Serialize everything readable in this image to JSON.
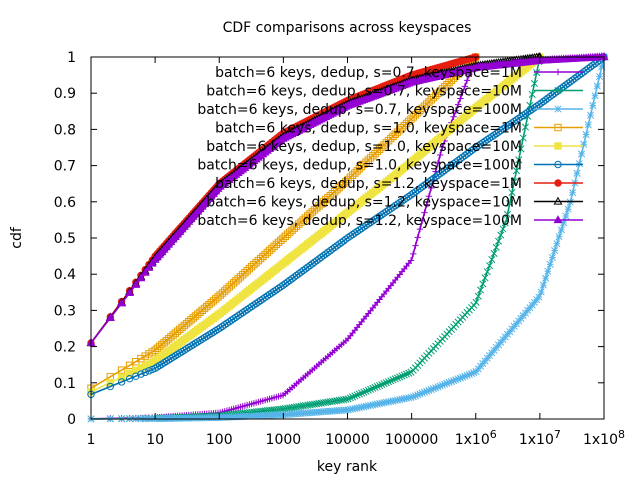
{
  "chart_data": {
    "type": "line",
    "title": "CDF comparisons across keyspaces",
    "xlabel": "key rank",
    "ylabel": "cdf",
    "x_scale": "log",
    "xlim": [
      1,
      100000000
    ],
    "ylim": [
      0,
      1
    ],
    "x_ticks": [
      {
        "value": 1,
        "label": "1"
      },
      {
        "value": 10,
        "label": "10"
      },
      {
        "value": 100,
        "label": "100"
      },
      {
        "value": 1000,
        "label": "1000"
      },
      {
        "value": 10000,
        "label": "10000"
      },
      {
        "value": 100000,
        "label": "100000"
      },
      {
        "value": 1000000,
        "label": "1x10",
        "sup": "6"
      },
      {
        "value": 10000000,
        "label": "1x10",
        "sup": "7"
      },
      {
        "value": 100000000,
        "label": "1x10",
        "sup": "8"
      }
    ],
    "y_ticks": [
      {
        "value": 0,
        "label": "0"
      },
      {
        "value": 0.1,
        "label": "0.1"
      },
      {
        "value": 0.2,
        "label": "0.2"
      },
      {
        "value": 0.3,
        "label": "0.3"
      },
      {
        "value": 0.4,
        "label": "0.4"
      },
      {
        "value": 0.5,
        "label": "0.5"
      },
      {
        "value": 0.6,
        "label": "0.6"
      },
      {
        "value": 0.7,
        "label": "0.7"
      },
      {
        "value": 0.8,
        "label": "0.8"
      },
      {
        "value": 0.9,
        "label": "0.9"
      },
      {
        "value": 1,
        "label": "1"
      }
    ],
    "grid": false,
    "legend_position": "top-right",
    "series": [
      {
        "name": "batch=6 keys, dedup, s=0.7, keyspace=1M",
        "color": "#9400d3",
        "marker": "plus",
        "points": [
          [
            1,
            0.0007
          ],
          [
            10,
            0.004
          ],
          [
            100,
            0.017
          ],
          [
            1000,
            0.066
          ],
          [
            10000,
            0.22
          ],
          [
            100000,
            0.44
          ],
          [
            300000,
            0.75
          ],
          [
            1000000,
            1.0
          ]
        ]
      },
      {
        "name": "batch=6 keys, dedup, s=0.7, keyspace=10M",
        "color": "#009e73",
        "marker": "x",
        "points": [
          [
            1,
            0.0003
          ],
          [
            10,
            0.0018
          ],
          [
            100,
            0.009
          ],
          [
            1000,
            0.028
          ],
          [
            10000,
            0.055
          ],
          [
            100000,
            0.13
          ],
          [
            1000000,
            0.32
          ],
          [
            3000000,
            0.55
          ],
          [
            10000000,
            1.0
          ]
        ]
      },
      {
        "name": "batch=6 keys, dedup, s=0.7, keyspace=100M",
        "color": "#56b4e9",
        "marker": "star",
        "points": [
          [
            1,
            0.0001
          ],
          [
            10,
            0.0008
          ],
          [
            100,
            0.004
          ],
          [
            1000,
            0.012
          ],
          [
            10000,
            0.025
          ],
          [
            100000,
            0.06
          ],
          [
            1000000,
            0.13
          ],
          [
            10000000,
            0.34
          ],
          [
            30000000,
            0.6
          ],
          [
            100000000,
            1.0
          ]
        ]
      },
      {
        "name": "batch=6 keys, dedup, s=1.0, keyspace=1M",
        "color": "#e69f00",
        "marker": "open-square",
        "points": [
          [
            1,
            0.085
          ],
          [
            10,
            0.19
          ],
          [
            100,
            0.34
          ],
          [
            1000,
            0.5
          ],
          [
            10000,
            0.66
          ],
          [
            100000,
            0.83
          ],
          [
            1000000,
            1.0
          ]
        ]
      },
      {
        "name": "batch=6 keys, dedup, s=1.0, keyspace=10M",
        "color": "#f0e442",
        "marker": "filled-square",
        "points": [
          [
            1,
            0.075
          ],
          [
            10,
            0.16
          ],
          [
            100,
            0.29
          ],
          [
            1000,
            0.43
          ],
          [
            10000,
            0.57
          ],
          [
            100000,
            0.71
          ],
          [
            1000000,
            0.86
          ],
          [
            10000000,
            1.0
          ]
        ]
      },
      {
        "name": "batch=6 keys, dedup, s=1.0, keyspace=100M",
        "color": "#0072b2",
        "marker": "open-circle",
        "points": [
          [
            1,
            0.068
          ],
          [
            10,
            0.14
          ],
          [
            100,
            0.25
          ],
          [
            1000,
            0.37
          ],
          [
            10000,
            0.5
          ],
          [
            100000,
            0.62
          ],
          [
            1000000,
            0.75
          ],
          [
            10000000,
            0.87
          ],
          [
            100000000,
            1.0
          ]
        ]
      },
      {
        "name": "batch=6 keys, dedup, s=1.2, keyspace=1M",
        "color": "#e51e10",
        "marker": "filled-circle",
        "points": [
          [
            1,
            0.21
          ],
          [
            10,
            0.45
          ],
          [
            100,
            0.65
          ],
          [
            1000,
            0.79
          ],
          [
            10000,
            0.88
          ],
          [
            100000,
            0.95
          ],
          [
            1000000,
            1.0
          ]
        ]
      },
      {
        "name": "batch=6 keys, dedup, s=1.2, keyspace=10M",
        "color": "#000000",
        "marker": "open-triangle",
        "points": [
          [
            1,
            0.21
          ],
          [
            10,
            0.445
          ],
          [
            100,
            0.645
          ],
          [
            1000,
            0.78
          ],
          [
            10000,
            0.87
          ],
          [
            100000,
            0.935
          ],
          [
            1000000,
            0.975
          ],
          [
            10000000,
            1.0
          ]
        ]
      },
      {
        "name": "batch=6 keys, dedup, s=1.2, keyspace=100M",
        "color": "#9400d3",
        "marker": "filled-triangle",
        "points": [
          [
            1,
            0.21
          ],
          [
            10,
            0.44
          ],
          [
            100,
            0.64
          ],
          [
            1000,
            0.775
          ],
          [
            10000,
            0.865
          ],
          [
            100000,
            0.93
          ],
          [
            1000000,
            0.97
          ],
          [
            10000000,
            0.99
          ],
          [
            100000000,
            1.0
          ]
        ]
      }
    ]
  }
}
